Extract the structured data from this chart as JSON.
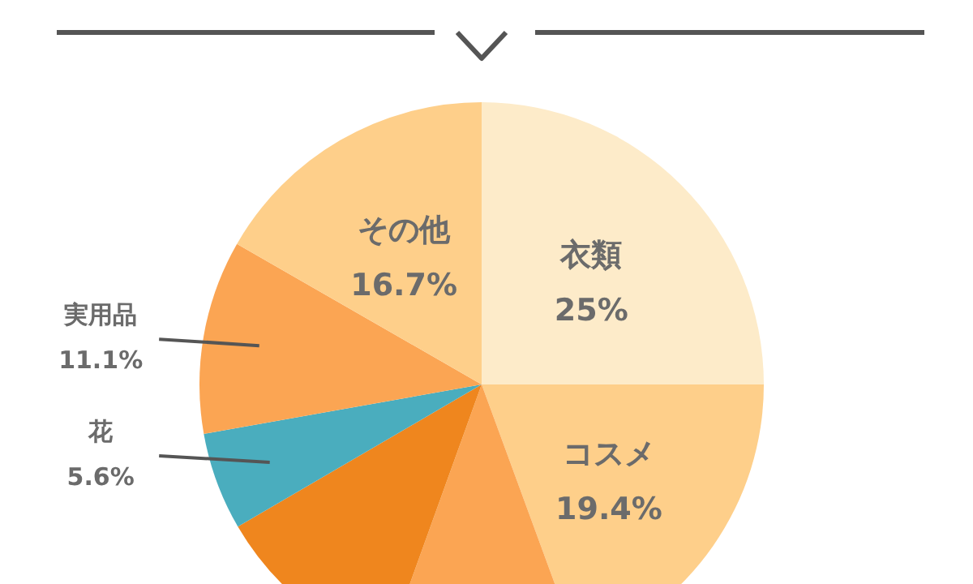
{
  "chart_data": {
    "type": "pie",
    "categories": [
      "衣類",
      "コスメ",
      null,
      null,
      "花",
      "実用品",
      "その他"
    ],
    "values": [
      25,
      19.4,
      11.1,
      11.1,
      5.6,
      11.1,
      16.7
    ],
    "colors": [
      "#fdebc9",
      "#fecf8a",
      "#fba553",
      "#ef861e",
      "#4aadbe",
      "#fba553",
      "#fecf8a"
    ],
    "value_labels": [
      "25%",
      "19.4%",
      null,
      null,
      "5.6%",
      "11.1%",
      "16.7%"
    ]
  }
}
